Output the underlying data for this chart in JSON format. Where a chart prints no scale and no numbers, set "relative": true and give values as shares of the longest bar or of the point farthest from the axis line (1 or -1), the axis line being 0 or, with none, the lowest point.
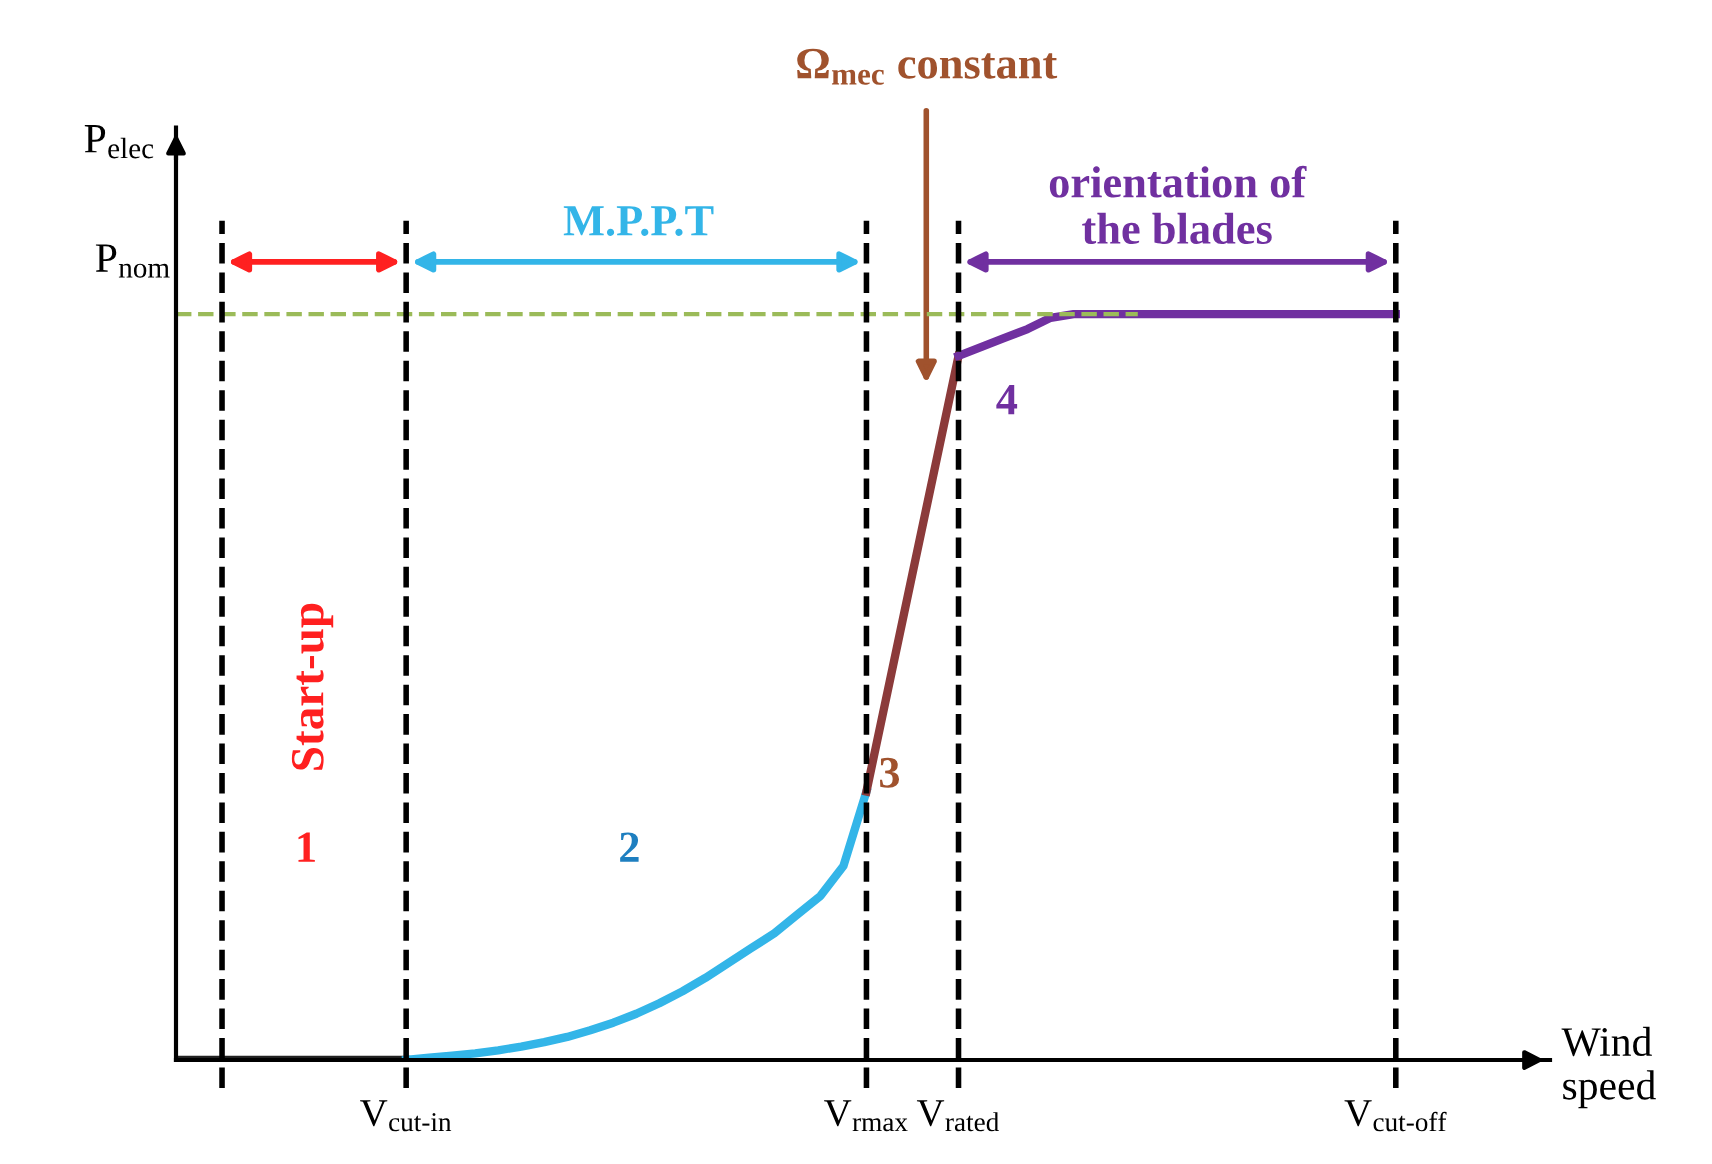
{
  "chart_data": {
    "type": "line",
    "relative": true,
    "ylabel": "P$_{elec}$",
    "xlabel": "Wind\nspeed",
    "categories": [
      null,
      null,
      null,
      null,
      null,
      null,
      null,
      null,
      null,
      null,
      "V$_{cut‐in}$",
      null,
      null,
      null,
      null,
      null,
      null,
      null,
      null,
      null,
      null,
      null,
      null,
      null,
      null,
      null,
      null,
      null,
      null,
      null,
      "V$_{rmax}$",
      null,
      null,
      null,
      "V$_{rated}$",
      null,
      null,
      null,
      null,
      null,
      null,
      null,
      null,
      null,
      null,
      null,
      null,
      null,
      null,
      null,
      null,
      null,
      null,
      "V$_{cut‐off}$",
      null,
      null,
      null,
      null,
      null,
      null
    ],
    "series": [
      {
        "color": "#222222",
        "values": [
          0,
          0,
          0,
          0,
          0,
          0,
          0,
          0,
          0,
          0,
          0,
          null,
          null,
          null,
          null,
          null,
          null,
          null,
          null,
          null,
          null,
          null,
          null,
          null,
          null,
          null,
          null,
          null,
          null,
          null,
          null,
          null,
          null,
          null,
          null,
          null,
          null,
          null,
          null,
          null,
          null,
          null,
          null,
          null,
          null,
          null,
          null,
          null,
          null,
          null,
          null,
          null,
          null,
          null,
          null,
          null,
          null,
          null,
          null,
          null
        ]
      },
      {
        "color": "#33b5e8",
        "values": [
          null,
          null,
          null,
          null,
          null,
          null,
          null,
          null,
          null,
          null,
          0,
          0.003,
          0.006,
          0.009,
          0.013,
          0.018,
          0.024,
          0.031,
          0.04,
          0.05,
          0.062,
          0.076,
          0.092,
          0.11,
          0.13,
          0.15,
          0.17,
          0.195,
          0.22,
          0.26,
          0.36,
          null,
          null,
          null,
          null,
          null,
          null,
          null,
          null,
          null,
          null,
          null,
          null,
          null,
          null,
          null,
          null,
          null,
          null,
          null,
          null,
          null,
          null,
          null,
          null,
          null,
          null,
          null,
          null,
          null
        ]
      },
      {
        "color": "#8b3a3a",
        "values": [
          null,
          null,
          null,
          null,
          null,
          null,
          null,
          null,
          null,
          null,
          null,
          null,
          null,
          null,
          null,
          null,
          null,
          null,
          null,
          null,
          null,
          null,
          null,
          null,
          null,
          null,
          null,
          null,
          null,
          null,
          0.36,
          0.506,
          0.652,
          0.798,
          0.944,
          null,
          null,
          null,
          null,
          null,
          null,
          null,
          null,
          null,
          null,
          null,
          null,
          null,
          null,
          null,
          null,
          null,
          null,
          null,
          null,
          null,
          null,
          null,
          null,
          null
        ]
      },
      {
        "color": "#7030a0",
        "values": [
          null,
          null,
          null,
          null,
          null,
          null,
          null,
          null,
          null,
          null,
          null,
          null,
          null,
          null,
          null,
          null,
          null,
          null,
          null,
          null,
          null,
          null,
          null,
          null,
          null,
          null,
          null,
          null,
          null,
          null,
          null,
          null,
          null,
          null,
          0.944,
          0.956,
          0.968,
          0.98,
          0.995,
          1,
          1,
          1,
          1,
          1,
          1,
          1,
          1,
          1,
          1,
          1,
          1,
          1,
          1,
          1,
          null,
          null,
          null,
          null,
          null,
          null
        ]
      }
    ],
    "ref_lines": [
      {
        "axis": "y",
        "value": 1,
        "label": "P$_{nom}$",
        "color": "#9bbb59",
        "line_style": "dashed"
      }
    ],
    "annotations": [
      "Start-up",
      "M.P.P.T",
      "Ω$_{mec}$ constant",
      "orientation of\nthe blades",
      "1",
      "2",
      "3",
      "4"
    ],
    "grid": "x",
    "legend": false,
    "marker": "none",
    "line_style": "solid"
  }
}
